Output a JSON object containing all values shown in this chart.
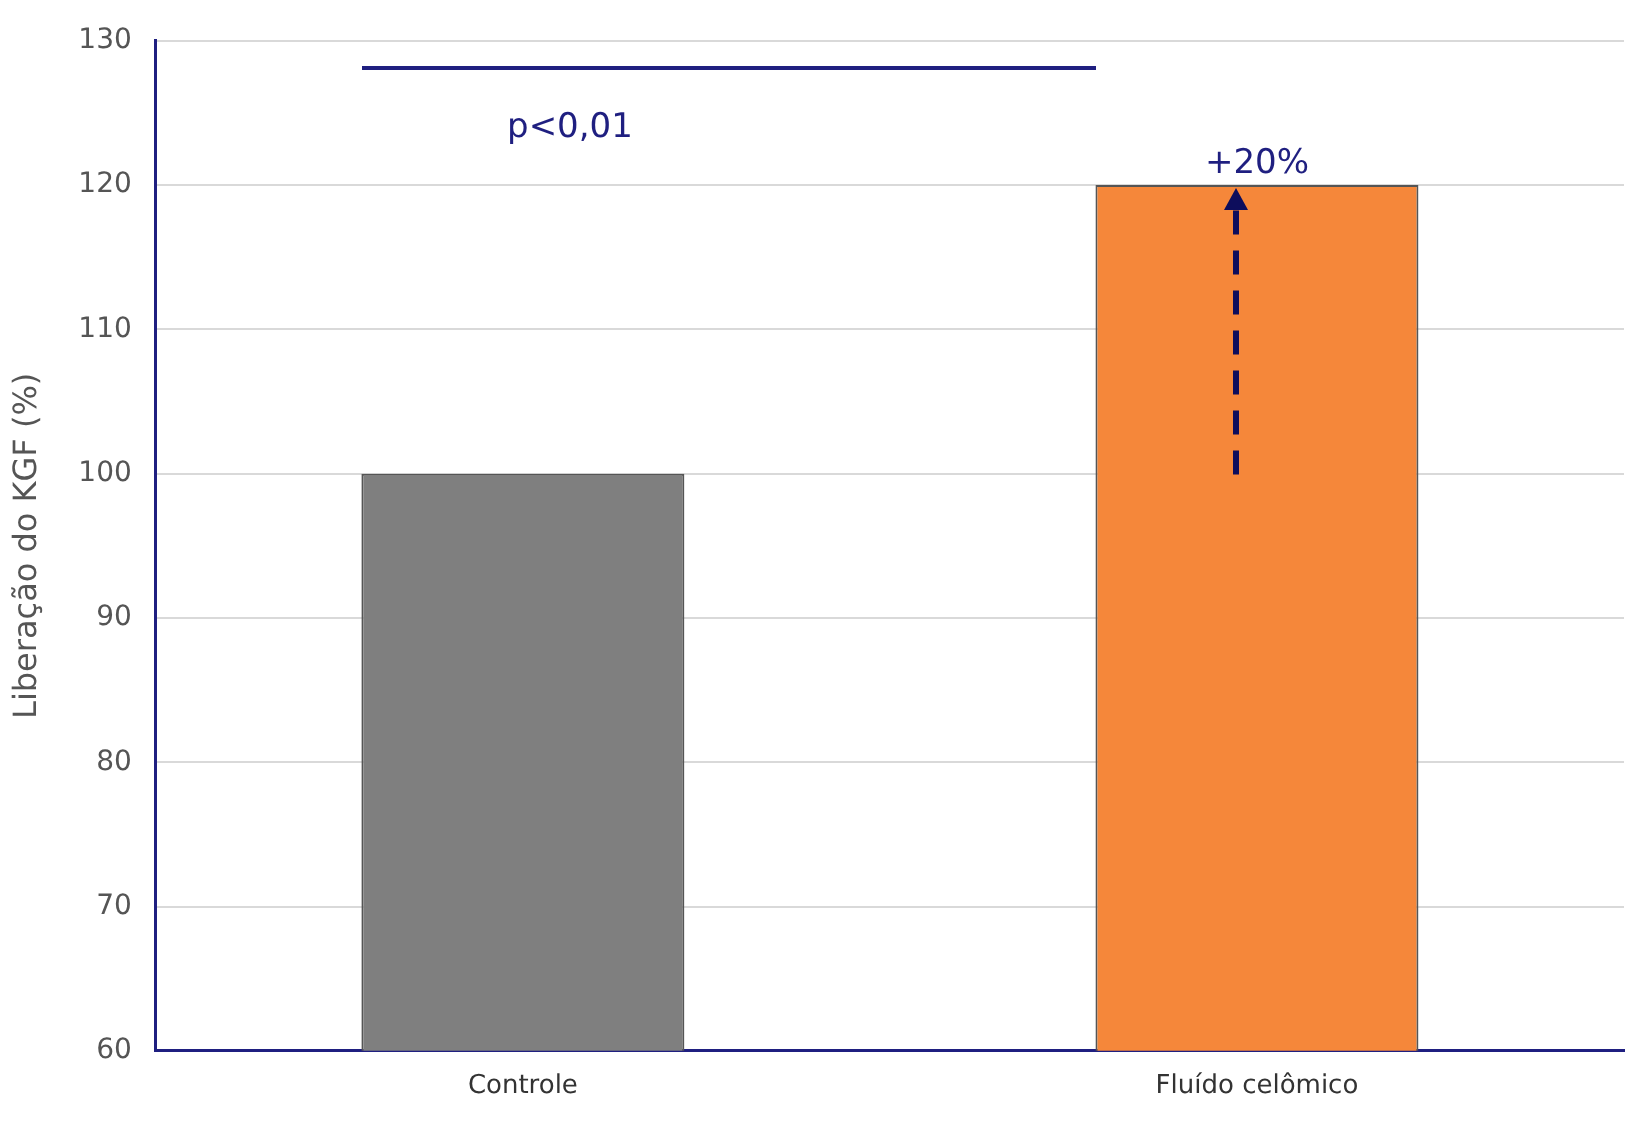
{
  "chart_data": {
    "type": "bar",
    "ylabel": "Liberação do KGF (%)",
    "categories": [
      "Controle",
      "Fluído celômico"
    ],
    "values": [
      100,
      120
    ],
    "colors": [
      "#7f7f7f",
      "#f5873a"
    ],
    "ylim": [
      60,
      130
    ],
    "yticks": [
      60,
      70,
      80,
      90,
      100,
      110,
      120,
      130
    ],
    "grid": "y",
    "annotations": [
      "p<0,01",
      {
        "text": "+20%",
        "x": "Fluído celômico",
        "y": 120
      }
    ]
  }
}
